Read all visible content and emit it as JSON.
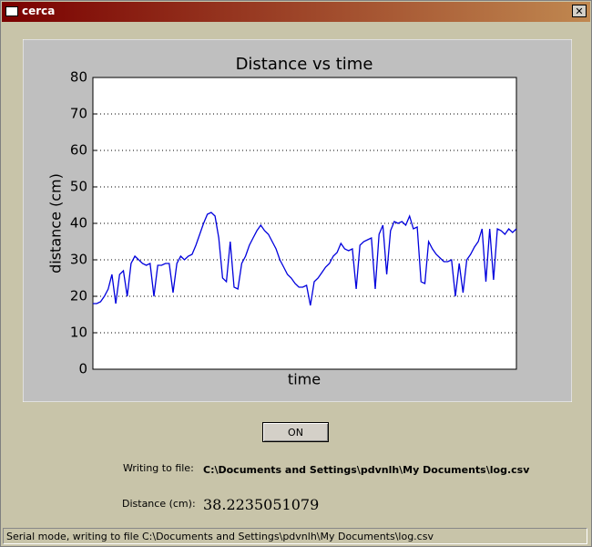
{
  "window": {
    "title": "cerca"
  },
  "chart_data": {
    "type": "line",
    "title": "Distance vs time",
    "x_label": "time",
    "y_label": "distance (cm)",
    "color": "#0000dd",
    "ylim": [
      0,
      80
    ],
    "yticks": [
      0,
      10,
      20,
      30,
      40,
      50,
      60,
      70,
      80
    ],
    "grid": true,
    "values": [
      18,
      18,
      18.5,
      20,
      22,
      26,
      18,
      26,
      27,
      20,
      29,
      31,
      30,
      29,
      28.5,
      29,
      20,
      28.5,
      28.5,
      29,
      29,
      21,
      29,
      31,
      30,
      31,
      31.5,
      34,
      37,
      40,
      42.5,
      43,
      42,
      36,
      25,
      24,
      35,
      22.5,
      22,
      29,
      31,
      34,
      36,
      38,
      39.5,
      38,
      37,
      35,
      33,
      30,
      28,
      26,
      25,
      23.5,
      22.5,
      22.5,
      23,
      17.5,
      24,
      25,
      26.5,
      28,
      29,
      31,
      32,
      34.5,
      33,
      32.5,
      33,
      22,
      34,
      35,
      35.5,
      36,
      22,
      37,
      39.5,
      26,
      38,
      40.5,
      40,
      40.5,
      39.5,
      42,
      38.5,
      39,
      24,
      23.5,
      35,
      33,
      31.5,
      30.5,
      29.5,
      29.5,
      30,
      20,
      29,
      21,
      30,
      31.5,
      33.5,
      35,
      38.5,
      24,
      38.5,
      24.5,
      38.5,
      38,
      37,
      38.5,
      37.5,
      38.5
    ]
  },
  "button": "ON",
  "file_label": "Writing to file:",
  "file_path": "C:\\Documents and Settings\\pdvnlh\\My Documents\\log.csv",
  "distance_label": "Distance (cm):",
  "distance_value": "38.2235051079",
  "status": "Serial mode, writing to file C:\\Documents and Settings\\pdvnlh\\My Documents\\log.csv"
}
